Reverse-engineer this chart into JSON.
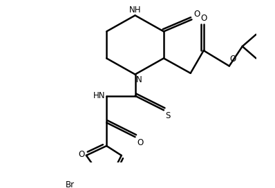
{
  "background_color": "#ffffff",
  "line_color": "#000000",
  "line_width": 1.8,
  "font_size": 8.5,
  "figsize": [
    3.98,
    2.72
  ],
  "dpi": 100,
  "xlim": [
    0,
    398
  ],
  "ylim": [
    0,
    272
  ]
}
